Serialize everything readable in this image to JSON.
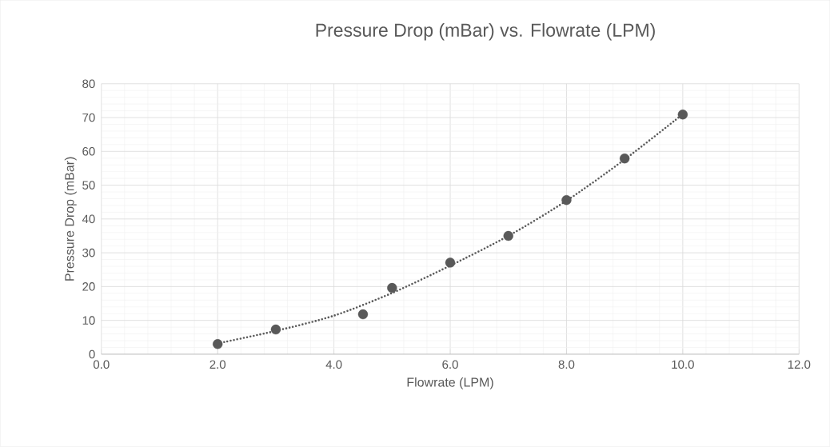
{
  "chart_data": {
    "type": "scatter",
    "title": "Pressure Drop (mBar) vs. Flowrate (LPM)",
    "xlabel": "Flowrate (LPM)",
    "ylabel": "Pressure Drop (mBar)",
    "series": [
      {
        "color": "#595959",
        "marker": "circle",
        "x": [
          2,
          3,
          4.5,
          5,
          6,
          7,
          8,
          9,
          10
        ],
        "values": [
          3.0,
          7.3,
          11.8,
          19.6,
          27.1,
          35.0,
          45.6,
          57.9,
          70.9
        ]
      },
      {
        "type": "line",
        "color": "#595959",
        "marker": "none",
        "line_style": "dotted",
        "x": [
          2,
          3,
          4,
          5,
          6,
          7,
          8,
          9,
          10
        ],
        "values": [
          3.2,
          6.9,
          11.4,
          18.1,
          26.2,
          35.0,
          45.4,
          57.6,
          71.0
        ]
      }
    ],
    "xlim": [
      0,
      12
    ],
    "ylim": [
      0,
      80
    ],
    "xticks": [
      {
        "value": 0,
        "label": "0.0"
      },
      {
        "value": 2,
        "label": "2.0"
      },
      {
        "value": 4,
        "label": "4.0"
      },
      {
        "value": 6,
        "label": "6.0"
      },
      {
        "value": 8,
        "label": "8.0"
      },
      {
        "value": 10,
        "label": "10.0"
      },
      {
        "value": 12,
        "label": "12.0"
      }
    ],
    "yticks": [
      0,
      10,
      20,
      30,
      40,
      50,
      60,
      70,
      80
    ],
    "grid": true
  }
}
